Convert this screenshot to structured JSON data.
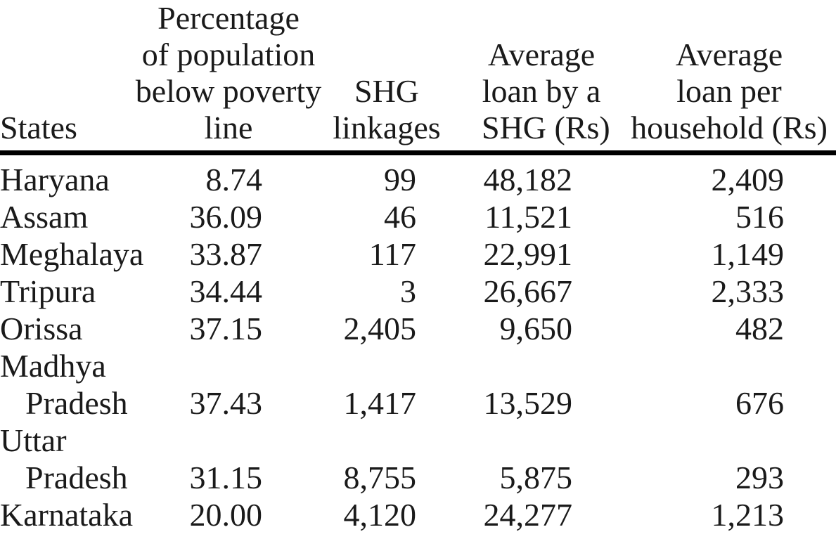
{
  "table": {
    "columns": [
      {
        "id": "state",
        "label": "States"
      },
      {
        "id": "poverty_pct",
        "label": "Percentage\nof population\nbelow poverty\nline"
      },
      {
        "id": "shg_linkages",
        "label": "SHG\nlinkages"
      },
      {
        "id": "avg_loan_shg",
        "label": "Average\nloan by a\nSHG (Rs)"
      },
      {
        "id": "avg_loan_household",
        "label": "Average\nloan per\nhousehold (Rs)"
      }
    ],
    "rows": [
      {
        "state": "Haryana",
        "poverty_pct": "8.74",
        "shg_linkages": "99",
        "avg_loan_shg": "48,182",
        "avg_loan_household": "2,409"
      },
      {
        "state": "Assam",
        "poverty_pct": "36.09",
        "shg_linkages": "46",
        "avg_loan_shg": "11,521",
        "avg_loan_household": "516"
      },
      {
        "state": "Meghalaya",
        "poverty_pct": "33.87",
        "shg_linkages": "117",
        "avg_loan_shg": "22,991",
        "avg_loan_household": "1,149"
      },
      {
        "state": "Tripura",
        "poverty_pct": "34.44",
        "shg_linkages": "3",
        "avg_loan_shg": "26,667",
        "avg_loan_household": "2,333"
      },
      {
        "state": "Orissa",
        "poverty_pct": "37.15",
        "shg_linkages": "2,405",
        "avg_loan_shg": "9,650",
        "avg_loan_household": "482"
      },
      {
        "state": "Madhya\nPradesh",
        "poverty_pct": "37.43",
        "shg_linkages": "1,417",
        "avg_loan_shg": "13,529",
        "avg_loan_household": "676"
      },
      {
        "state": "Uttar\nPradesh",
        "poverty_pct": "31.15",
        "shg_linkages": "8,755",
        "avg_loan_shg": "5,875",
        "avg_loan_household": "293"
      },
      {
        "state": "Karnataka",
        "poverty_pct": "20.00",
        "shg_linkages": "4,120",
        "avg_loan_shg": "24,277",
        "avg_loan_household": "1,213"
      }
    ]
  },
  "colors": {
    "text": "#1a1a1a",
    "background": "#ffffff",
    "header_rule": "#000000"
  }
}
